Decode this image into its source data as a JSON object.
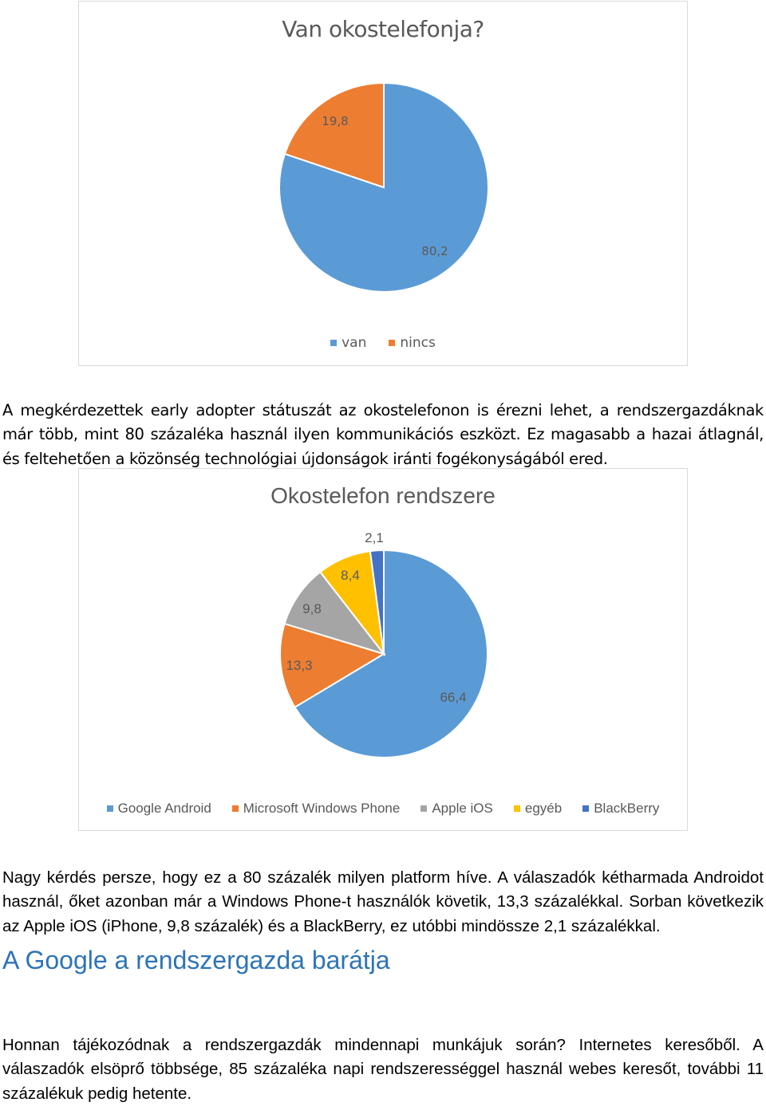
{
  "chart1": {
    "title": "Van okostelefonja?",
    "legend": [
      {
        "label": "van",
        "color": "#5b9bd5"
      },
      {
        "label": "nincs",
        "color": "#ed7d31"
      }
    ]
  },
  "paragraph1": "A megkérdezettek early adopter státuszát az okostelefonon is érezni lehet, a rendszergazdáknak már több, mint 80 százaléka használ ilyen kommunikációs eszközt. Ez magasabb a hazai átlagnál, és feltehetően a közönség technológiai újdonságok iránti fogékonyságából ered.",
  "chart2": {
    "title": "Okostelefon rendszere",
    "legend": [
      {
        "label": "Google Android",
        "color": "#5b9bd5"
      },
      {
        "label": "Microsoft Windows Phone",
        "color": "#ed7d31"
      },
      {
        "label": "Apple iOS",
        "color": "#a5a5a5"
      },
      {
        "label": "egyéb",
        "color": "#ffc000"
      },
      {
        "label": "BlackBerry",
        "color": "#4472c4"
      }
    ]
  },
  "paragraph2": "Nagy kérdés persze, hogy ez a 80 százalék milyen platform híve. A válaszadók kétharmada Androidot használ, őket azonban már a Windows Phone-t használók követik, 13,3 százalékkal. Sorban következik az Apple iOS (iPhone, 9,8 százalék) és a BlackBerry, ez utóbbi mindössze 2,1 százalékkal.",
  "heading": "A Google a rendszergazda barátja",
  "paragraph3": "Honnan tájékozódnak a rendszergazdák mindennapi munkájuk során? Internetes keresőből. A válaszadók elsöprő többsége, 85 százaléka napi rendszerességgel használ webes keresőt, további 11 százalékuk pedig hetente.",
  "chart_data": [
    {
      "type": "pie",
      "title": "Van okostelefonja?",
      "categories": [
        "van",
        "nincs"
      ],
      "values": [
        80.2,
        19.8
      ],
      "labels": [
        "80,2",
        "19,8"
      ],
      "colors": [
        "#5b9bd5",
        "#ed7d31"
      ],
      "legend": "bottom"
    },
    {
      "type": "pie",
      "title": "Okostelefon rendszere",
      "categories": [
        "Google Android",
        "Microsoft Windows Phone",
        "Apple iOS",
        "egyéb",
        "BlackBerry"
      ],
      "values": [
        66.4,
        13.3,
        9.8,
        8.4,
        2.1
      ],
      "labels": [
        "66,4",
        "13,3",
        "9,8",
        "8,4",
        "2,1"
      ],
      "colors": [
        "#5b9bd5",
        "#ed7d31",
        "#a5a5a5",
        "#ffc000",
        "#4472c4"
      ],
      "legend": "bottom"
    }
  ]
}
